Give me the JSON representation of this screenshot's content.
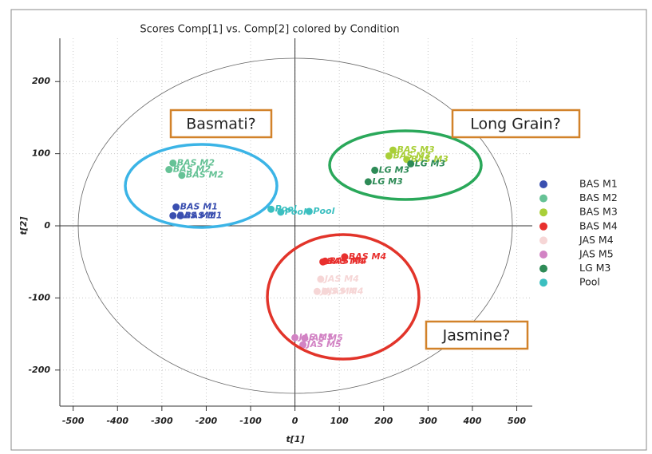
{
  "chart_data": {
    "type": "scatter",
    "title": "Scores Comp[1] vs. Comp[2] colored by Condition",
    "x_label": "t[1]",
    "y_label": "t[2]",
    "xlim": [
      -530,
      535
    ],
    "ylim": [
      -250,
      260
    ],
    "xticks": [
      -500,
      -400,
      -300,
      -200,
      -100,
      0,
      100,
      200,
      300,
      400,
      500
    ],
    "yticks": [
      -200,
      -100,
      0,
      100,
      200
    ],
    "grid": true,
    "legend": "right",
    "annotations": [
      "Basmati?",
      "Long Grain?",
      "Jasmine?"
    ],
    "series": [
      {
        "name": "BAS M1",
        "color": "#3a4fb0",
        "x": [
          -268,
          -275,
          -258
        ],
        "values": [
          26,
          14,
          14
        ]
      },
      {
        "name": "BAS M2",
        "color": "#66c296",
        "x": [
          -275,
          -284,
          -255
        ],
        "values": [
          87,
          78,
          70
        ]
      },
      {
        "name": "BAS M3",
        "color": "#a9cf38",
        "x": [
          221,
          212,
          252
        ],
        "values": [
          105,
          97,
          92
        ]
      },
      {
        "name": "BAS M4",
        "color": "#e8302e",
        "x": [
          63,
          68,
          112
        ],
        "values": [
          -50,
          -49,
          -43
        ]
      },
      {
        "name": "JAS M4",
        "color": "#f6d6d6",
        "x": [
          58,
          50,
          68
        ],
        "values": [
          -74,
          -91,
          -91
        ]
      },
      {
        "name": "JAS M5",
        "color": "#d283c4",
        "x": [
          0,
          22,
          18
        ],
        "values": [
          -155,
          -156,
          -165
        ]
      },
      {
        "name": "LG M3",
        "color": "#2e8b57",
        "x": [
          180,
          165,
          261
        ],
        "values": [
          77,
          61,
          86
        ]
      },
      {
        "name": "Pool",
        "color": "#3bbfc0",
        "x": [
          -54,
          -32,
          32
        ],
        "values": [
          23,
          19,
          20
        ]
      }
    ]
  }
}
